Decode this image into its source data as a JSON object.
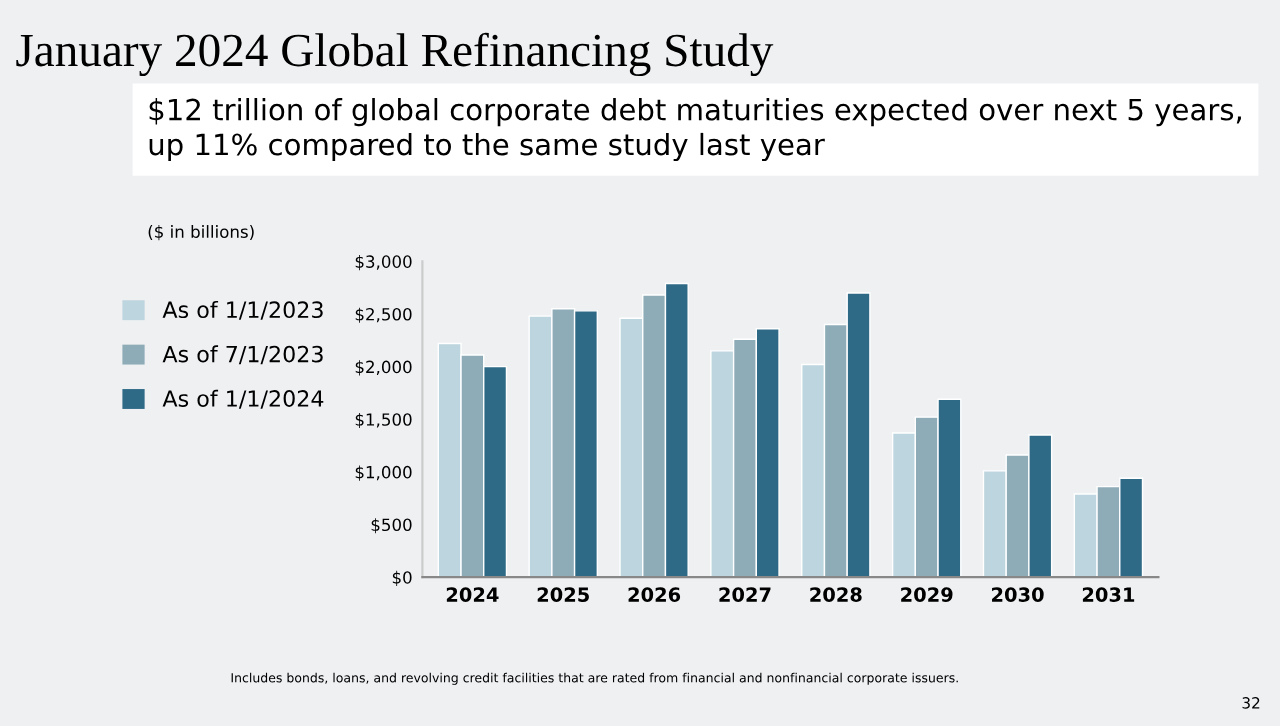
{
  "chart_data": {
    "type": "bar",
    "title": "January 2024 Global Refinancing Study",
    "subtitle": "$12 trillion of global corporate debt maturities expected over next 5 years,\nup 11% compared to the same study last year",
    "categories": [
      "2024",
      "2025",
      "2026",
      "2027",
      "2028",
      "2029",
      "2030",
      "2031"
    ],
    "series": [
      {
        "name": "As of 1/1/2023",
        "color": "#bdd5de",
        "values": [
          2220,
          2480,
          2460,
          2150,
          2020,
          1370,
          1010,
          790
        ]
      },
      {
        "name": "As of 7/1/2023",
        "color": "#8eacb8",
        "values": [
          2110,
          2550,
          2680,
          2260,
          2400,
          1520,
          1160,
          860
        ]
      },
      {
        "name": "As of 1/1/2024",
        "color": "#2e6a86",
        "values": [
          2000,
          2530,
          2790,
          2360,
          2700,
          1690,
          1350,
          940
        ]
      }
    ],
    "ylim": [
      0,
      3000
    ],
    "yticks": [
      {
        "value": 0,
        "label": "$0"
      },
      {
        "value": 500,
        "label": "$500"
      },
      {
        "value": 1000,
        "label": "$1,000"
      },
      {
        "value": 1500,
        "label": "$1,500"
      },
      {
        "value": 2000,
        "label": "$2,000"
      },
      {
        "value": 2500,
        "label": "$2,500"
      },
      {
        "value": 3000,
        "label": "$3,000"
      }
    ],
    "grid": false,
    "legend": "left",
    "annotations": [
      "($ in billions)",
      "Includes bonds, loans, and revolving credit facilities that are rated from financial and nonfinancial corporate issuers.",
      "32"
    ]
  }
}
